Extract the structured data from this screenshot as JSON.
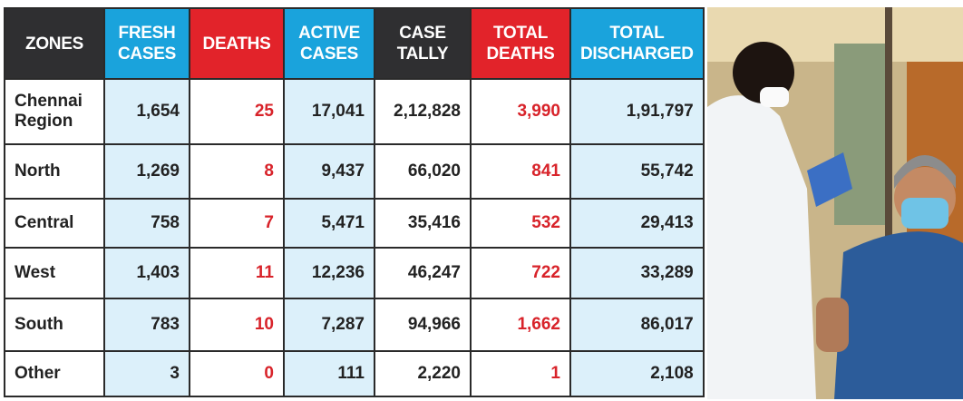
{
  "table": {
    "header": [
      "ZONES",
      "FRESH CASES",
      "DEATHS",
      "ACTIVE CASES",
      "CASE TALLY",
      "TOTAL DEATHS",
      "TOTAL DISCHARGED"
    ],
    "rows": [
      [
        "Chennai Region",
        "1,654",
        "25",
        "17,041",
        "2,12,828",
        "3,990",
        "1,91,797"
      ],
      [
        "North",
        "1,269",
        "8",
        "9,437",
        "66,020",
        "841",
        "55,742"
      ],
      [
        "Central",
        "758",
        "7",
        "5,471",
        "35,416",
        "532",
        "29,413"
      ],
      [
        "West",
        "1,403",
        "11",
        "12,236",
        "46,247",
        "722",
        "33,289"
      ],
      [
        "South",
        "783",
        "10",
        "7,287",
        "94,966",
        "1,662",
        "86,017"
      ],
      [
        "Other",
        "3",
        "0",
        "111",
        "2,220",
        "1",
        "2,108"
      ]
    ]
  }
}
